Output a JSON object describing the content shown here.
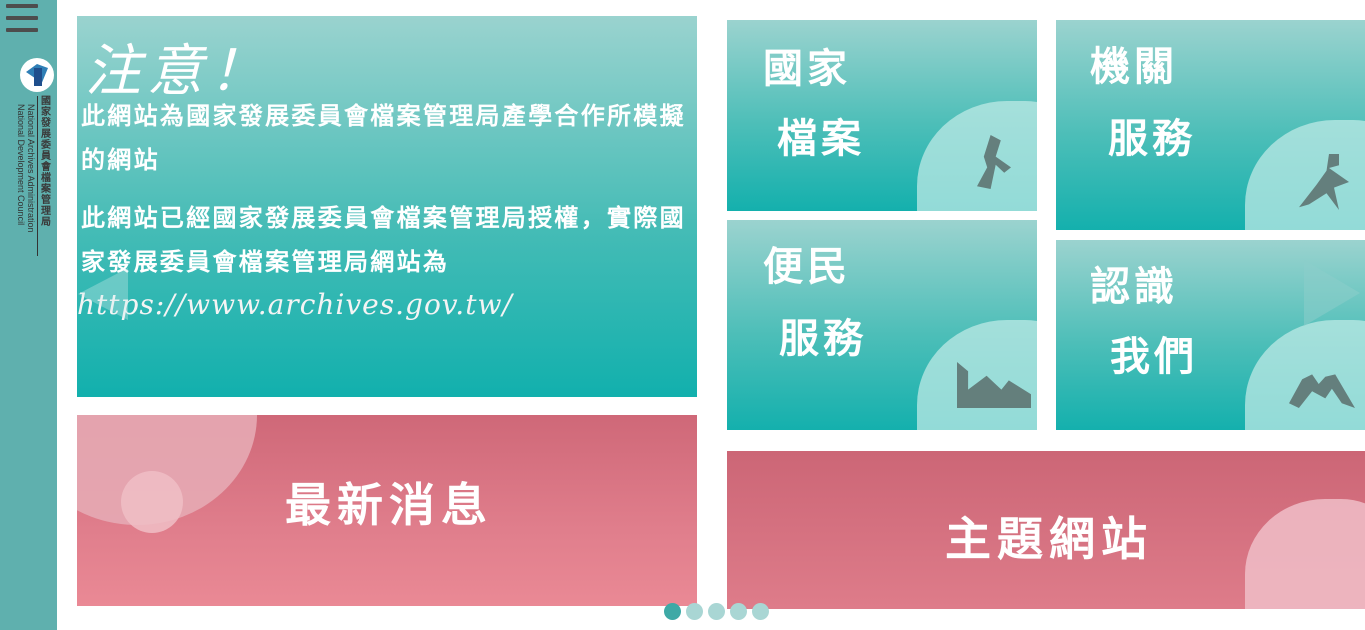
{
  "sidebar": {
    "org_name_cn": "國家發展委員會檔案管理局",
    "org_name_en_1": "National Archives Administration",
    "org_name_en_2": "National Development Council"
  },
  "notice": {
    "title": "注意！",
    "p1": "此網站為國家發展委員會檔案管理局產學合作所模擬的網站",
    "p2": "此網站已經國家發展委員會檔案管理局授權，實際國家發展委員會檔案管理局網站為",
    "url": "https://www.archives.gov.tw/"
  },
  "cards": {
    "national_archives": {
      "line1": "國家",
      "line2": "檔案"
    },
    "agency_services": {
      "line1": "機關",
      "line2": "服務"
    },
    "public_services": {
      "line1": "便民",
      "line2": "服務"
    },
    "about_us": {
      "line1": "認識",
      "line2": "我們"
    }
  },
  "news": {
    "label": "最新消息"
  },
  "topic": {
    "label": "主題網站"
  },
  "carousel": {
    "slide_count": 5,
    "active_slide": 1
  },
  "icons": {
    "menu": "hamburger-icon",
    "prev": "chevron-left-icon",
    "next": "chevron-right-icon"
  },
  "colors": {
    "teal_accent": "#12b0ad",
    "sidebar": "#5fb0ae",
    "pink_accent": "#d86f7f"
  }
}
